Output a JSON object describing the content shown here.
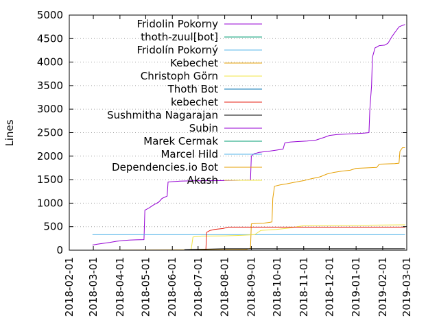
{
  "chart_data": {
    "type": "line",
    "title": "",
    "xlabel": "",
    "ylabel": "Lines",
    "ylim": [
      0,
      5000
    ],
    "xlim": [
      "2018-02-01",
      "2019-03-01"
    ],
    "y_ticks": [
      0,
      500,
      1000,
      1500,
      2000,
      2500,
      3000,
      3500,
      4000,
      4500,
      5000
    ],
    "x_ticks": [
      "2018-02-01",
      "2018-03-01",
      "2018-04-01",
      "2018-05-01",
      "2018-06-01",
      "2018-07-01",
      "2018-08-01",
      "2018-09-01",
      "2018-10-01",
      "2018-11-01",
      "2018-12-01",
      "2019-01-01",
      "2019-02-01",
      "2019-03-01"
    ],
    "grid": "horizontal dotted",
    "legend_position": "top-left",
    "series": [
      {
        "name": "Fridolin Pokorny",
        "color": "#9400d3",
        "points": [
          [
            "2018-02-28",
            110
          ],
          [
            "2018-03-05",
            125
          ],
          [
            "2018-03-12",
            145
          ],
          [
            "2018-03-20",
            165
          ],
          [
            "2018-03-28",
            190
          ],
          [
            "2018-04-05",
            205
          ],
          [
            "2018-04-12",
            215
          ],
          [
            "2018-04-20",
            220
          ],
          [
            "2018-04-29",
            225
          ],
          [
            "2018-04-30",
            850
          ],
          [
            "2018-05-05",
            900
          ],
          [
            "2018-05-10",
            960
          ],
          [
            "2018-05-16",
            1020
          ],
          [
            "2018-05-20",
            1100
          ],
          [
            "2018-05-26",
            1150
          ],
          [
            "2018-05-27",
            1450
          ],
          [
            "2018-06-10",
            1470
          ],
          [
            "2018-06-25",
            1475
          ],
          [
            "2018-07-10",
            1478
          ],
          [
            "2018-07-25",
            1480
          ],
          [
            "2018-08-15",
            1485
          ],
          [
            "2018-08-31",
            1490
          ],
          [
            "2018-09-01",
            2000
          ],
          [
            "2018-09-04",
            2050
          ],
          [
            "2018-09-10",
            2080
          ],
          [
            "2018-09-20",
            2100
          ],
          [
            "2018-10-01",
            2130
          ],
          [
            "2018-10-08",
            2150
          ],
          [
            "2018-10-10",
            2280
          ],
          [
            "2018-10-16",
            2300
          ],
          [
            "2018-10-25",
            2310
          ],
          [
            "2018-11-05",
            2320
          ],
          [
            "2018-11-15",
            2340
          ],
          [
            "2018-11-25",
            2400
          ],
          [
            "2018-12-01",
            2440
          ],
          [
            "2018-12-10",
            2460
          ],
          [
            "2018-12-20",
            2470
          ],
          [
            "2019-01-01",
            2480
          ],
          [
            "2019-01-10",
            2490
          ],
          [
            "2019-01-16",
            2500
          ],
          [
            "2019-01-17",
            3000
          ],
          [
            "2019-01-19",
            3500
          ],
          [
            "2019-01-20",
            4100
          ],
          [
            "2019-01-23",
            4300
          ],
          [
            "2019-01-28",
            4350
          ],
          [
            "2019-02-03",
            4360
          ],
          [
            "2019-02-07",
            4400
          ],
          [
            "2019-02-12",
            4550
          ],
          [
            "2019-02-16",
            4650
          ],
          [
            "2019-02-20",
            4750
          ],
          [
            "2019-02-24",
            4780
          ],
          [
            "2019-02-27",
            4800
          ]
        ]
      },
      {
        "name": "thoth-zuul[bot]",
        "color": "#009e73",
        "points": [
          [
            "2018-02-28",
            0
          ],
          [
            "2019-02-27",
            0
          ]
        ]
      },
      {
        "name": "Fridolín Pokorný",
        "color": "#56b4e9",
        "points": [
          [
            "2018-02-28",
            330
          ],
          [
            "2019-02-27",
            330
          ]
        ]
      },
      {
        "name": "Kebechet",
        "color": "#e69f00",
        "points": [
          [
            "2018-02-28",
            0
          ],
          [
            "2018-08-25",
            10
          ],
          [
            "2018-08-31",
            40
          ],
          [
            "2018-09-01",
            560
          ],
          [
            "2018-09-08",
            570
          ],
          [
            "2018-09-15",
            575
          ],
          [
            "2018-09-22",
            590
          ],
          [
            "2018-09-25",
            600
          ],
          [
            "2018-09-26",
            1100
          ],
          [
            "2018-09-28",
            1360
          ],
          [
            "2018-10-05",
            1390
          ],
          [
            "2018-10-12",
            1410
          ],
          [
            "2018-10-20",
            1440
          ],
          [
            "2018-11-01",
            1480
          ],
          [
            "2018-11-10",
            1520
          ],
          [
            "2018-11-20",
            1560
          ],
          [
            "2018-11-28",
            1620
          ],
          [
            "2018-12-05",
            1650
          ],
          [
            "2018-12-15",
            1680
          ],
          [
            "2018-12-25",
            1700
          ],
          [
            "2019-01-01",
            1740
          ],
          [
            "2019-01-25",
            1760
          ],
          [
            "2019-01-28",
            1830
          ],
          [
            "2019-02-15",
            1840
          ],
          [
            "2019-02-20",
            1850
          ],
          [
            "2019-02-21",
            2100
          ],
          [
            "2019-02-24",
            2180
          ],
          [
            "2019-02-27",
            2180
          ]
        ]
      },
      {
        "name": "Christoph Görn",
        "color": "#f0e442",
        "points": [
          [
            "2018-02-28",
            0
          ],
          [
            "2018-06-08",
            0
          ],
          [
            "2018-06-20",
            5
          ],
          [
            "2018-06-23",
            20
          ],
          [
            "2018-06-25",
            280
          ],
          [
            "2018-07-05",
            300
          ],
          [
            "2018-08-01",
            305
          ],
          [
            "2018-08-20",
            315
          ],
          [
            "2018-09-05",
            330
          ],
          [
            "2018-09-12",
            420
          ],
          [
            "2018-09-30",
            440
          ],
          [
            "2018-10-15",
            470
          ],
          [
            "2018-11-01",
            520
          ],
          [
            "2019-02-27",
            540
          ]
        ]
      },
      {
        "name": "Thoth Bot",
        "color": "#0072b2",
        "points": [
          [
            "2018-02-28",
            0
          ],
          [
            "2019-02-27",
            0
          ]
        ]
      },
      {
        "name": "kebechet",
        "color": "#e51e10",
        "points": [
          [
            "2018-07-10",
            0
          ],
          [
            "2018-07-11",
            380
          ],
          [
            "2018-07-15",
            420
          ],
          [
            "2018-07-20",
            440
          ],
          [
            "2018-07-30",
            460
          ],
          [
            "2018-08-05",
            490
          ],
          [
            "2019-02-27",
            490
          ]
        ]
      },
      {
        "name": "Sushmitha Nagarajan",
        "color": "#000000",
        "points": [
          [
            "2018-06-15",
            10
          ],
          [
            "2018-07-05",
            20
          ],
          [
            "2018-08-01",
            30
          ],
          [
            "2019-02-27",
            30
          ]
        ]
      },
      {
        "name": "Subin",
        "color": "#9400d3",
        "points": [
          [
            "2018-02-28",
            0
          ],
          [
            "2019-02-27",
            0
          ]
        ]
      },
      {
        "name": "Marek Cermak",
        "color": "#009e73",
        "points": [
          [
            "2018-02-28",
            0
          ],
          [
            "2019-02-27",
            0
          ]
        ]
      },
      {
        "name": "Marcel Hild",
        "color": "#56b4e9",
        "points": [
          [
            "2018-02-28",
            0
          ],
          [
            "2019-02-27",
            0
          ]
        ]
      },
      {
        "name": "Dependencies.io Bot",
        "color": "#e69f00",
        "points": [
          [
            "2018-02-28",
            0
          ],
          [
            "2019-02-27",
            0
          ]
        ]
      },
      {
        "name": "Akash",
        "color": "#f0e442",
        "points": [
          [
            "2018-02-28",
            0
          ],
          [
            "2019-02-27",
            0
          ]
        ]
      }
    ]
  }
}
